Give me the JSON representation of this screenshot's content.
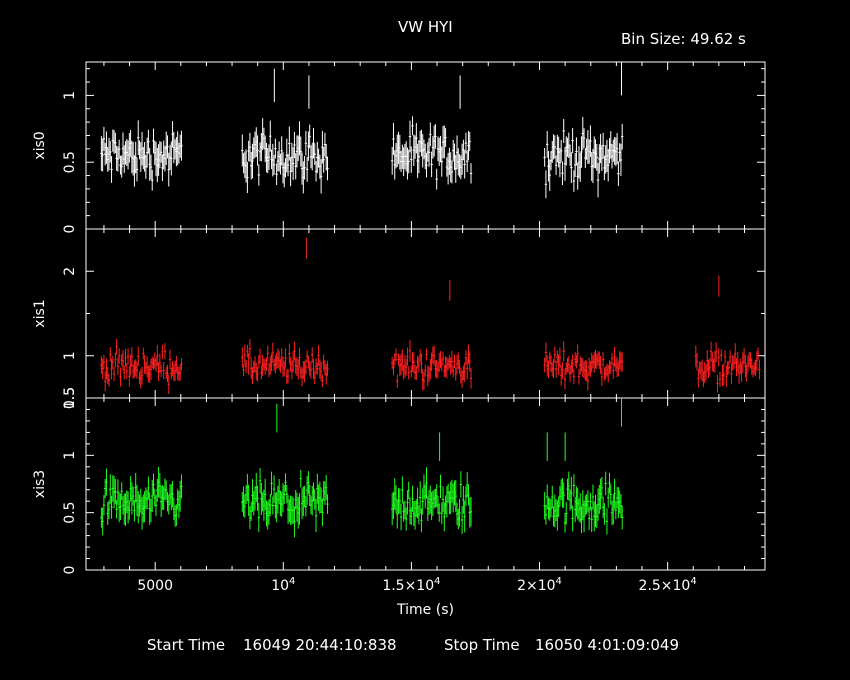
{
  "header": {
    "title": "VW HYI",
    "bin_size": "Bin Size: 49.62 s"
  },
  "footer": {
    "start_label": "Start Time",
    "start_value": "16049 20:44:10:838",
    "stop_label": "Stop Time",
    "stop_value": "16050  4:01:09:049"
  },
  "colors": {
    "xis0": "#ffffff",
    "xis1": "#ff2020",
    "xis3": "#20ff20",
    "frame": "#ffffff"
  },
  "chart_data": {
    "type": "scatter",
    "title": "VW HYI",
    "xlabel": "Time (s)",
    "xlim": [
      2300,
      28800
    ],
    "x_ticks": [
      {
        "value": 5000,
        "label": "5000"
      },
      {
        "value": 10000,
        "label": "10^4"
      },
      {
        "value": 15000,
        "label": "1.5×10^4"
      },
      {
        "value": 20000,
        "label": "2×10^4"
      },
      {
        "value": 25000,
        "label": "2.5×10^4"
      }
    ],
    "bin_size_s": 49.62,
    "panels": [
      {
        "name": "xis0",
        "ylabel": "xis0",
        "ylim": [
          0,
          1.25
        ],
        "y_ticks": [
          0,
          0.5,
          1
        ],
        "y_tick_labels": [
          "0",
          "0.5",
          "1"
        ],
        "segments": [
          [
            2900,
            6050
          ],
          [
            8400,
            11750
          ],
          [
            14250,
            17350
          ],
          [
            20200,
            23250
          ]
        ],
        "mean": 0.55,
        "spread": 0.14,
        "err": 0.1,
        "spikes": [
          [
            9650,
            1.2
          ],
          [
            11000,
            1.15
          ],
          [
            16900,
            1.15
          ],
          [
            23200,
            1.25
          ]
        ]
      },
      {
        "name": "xis1",
        "ylabel": "xis1",
        "ylim": [
          0.5,
          2.5
        ],
        "y_ticks": [
          0.5,
          1,
          2
        ],
        "y_tick_labels": [
          "0.5",
          "1",
          "2"
        ],
        "segments": [
          [
            2900,
            6050
          ],
          [
            8400,
            11750
          ],
          [
            14250,
            17350
          ],
          [
            20200,
            23250
          ],
          [
            26100,
            28600
          ]
        ],
        "mean": 0.88,
        "spread": 0.15,
        "err": 0.1,
        "spikes": [
          [
            10900,
            2.4
          ],
          [
            16500,
            1.9
          ],
          [
            27000,
            1.95
          ]
        ]
      },
      {
        "name": "xis3",
        "ylabel": "xis3",
        "ylim": [
          0,
          1.5
        ],
        "y_ticks": [
          0,
          0.5,
          1,
          1.5
        ],
        "y_tick_labels": [
          "0",
          "0.5",
          "1",
          "1.5"
        ],
        "segments": [
          [
            2900,
            6050
          ],
          [
            8400,
            11750
          ],
          [
            14250,
            17350
          ],
          [
            20200,
            23250
          ]
        ],
        "mean": 0.58,
        "spread": 0.15,
        "err": 0.11,
        "spikes": [
          [
            9750,
            1.45
          ],
          [
            16100,
            1.2
          ],
          [
            20300,
            1.2
          ],
          [
            21000,
            1.2
          ],
          [
            23200,
            1.5
          ]
        ]
      }
    ]
  }
}
